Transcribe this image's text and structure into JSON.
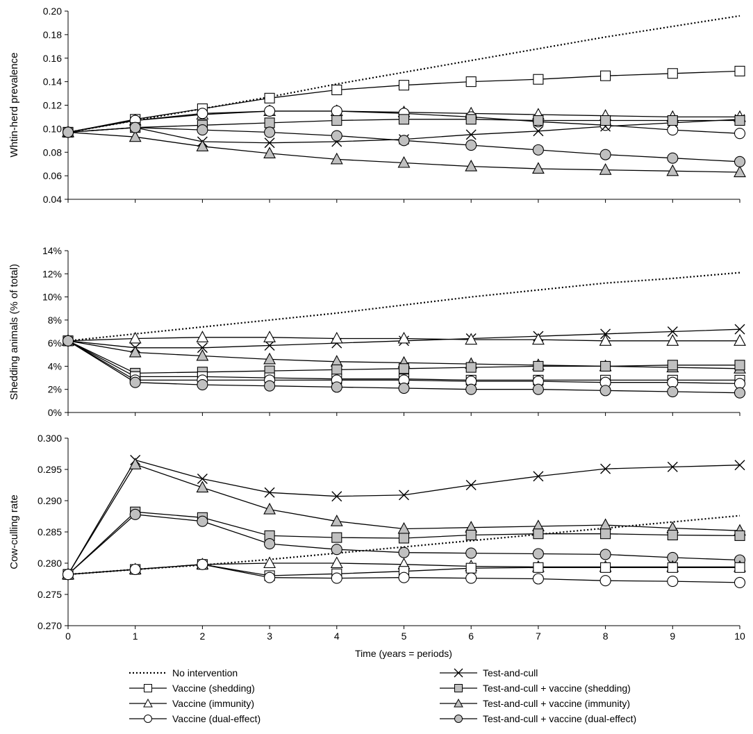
{
  "x_axis": {
    "label": "Time (years = periods)",
    "ticks": [
      "0",
      "1",
      "2",
      "3",
      "4",
      "5",
      "6",
      "7",
      "8",
      "9",
      "10"
    ]
  },
  "legend": [
    {
      "label": "No intervention",
      "style": "dotted",
      "marker": "none",
      "fill": "none"
    },
    {
      "label": "Test-and-cull",
      "style": "solid",
      "marker": "x",
      "fill": "none"
    },
    {
      "label": "Vaccine (shedding)",
      "style": "solid",
      "marker": "square",
      "fill": "#ffffff"
    },
    {
      "label": "Test-and-cull + vaccine (shedding)",
      "style": "solid",
      "marker": "square",
      "fill": "#c0c0c0"
    },
    {
      "label": "Vaccine (immunity)",
      "style": "solid",
      "marker": "triangle",
      "fill": "#ffffff"
    },
    {
      "label": "Test-and-cull + vaccine (immunity)",
      "style": "solid",
      "marker": "triangle",
      "fill": "#c0c0c0"
    },
    {
      "label": "Vaccine (dual-effect)",
      "style": "solid",
      "marker": "circle",
      "fill": "#ffffff"
    },
    {
      "label": "Test-and-cull + vaccine (dual-effect)",
      "style": "solid",
      "marker": "circle",
      "fill": "#c0c0c0"
    }
  ],
  "chart_data": [
    {
      "type": "line",
      "ylabel": "Whtin-herd prevalence",
      "ylim": [
        0.04,
        0.2
      ],
      "yticks": [
        "0.04",
        "0.06",
        "0.08",
        "0.10",
        "0.12",
        "0.14",
        "0.16",
        "0.18",
        "0.20"
      ],
      "x": [
        0,
        1,
        2,
        3,
        4,
        5,
        6,
        7,
        8,
        9,
        10
      ],
      "series": [
        {
          "name": "No intervention",
          "values": [
            0.097,
            0.107,
            0.117,
            0.127,
            0.138,
            0.148,
            0.158,
            0.168,
            0.178,
            0.187,
            0.196
          ]
        },
        {
          "name": "Vaccine (shedding)",
          "values": [
            0.097,
            0.108,
            0.117,
            0.126,
            0.133,
            0.137,
            0.14,
            0.142,
            0.145,
            0.147,
            0.149
          ]
        },
        {
          "name": "Vaccine (immunity)",
          "values": [
            0.097,
            0.107,
            0.112,
            0.115,
            0.115,
            0.114,
            0.113,
            0.112,
            0.111,
            0.11,
            0.11
          ]
        },
        {
          "name": "Vaccine (dual-effect)",
          "values": [
            0.097,
            0.107,
            0.113,
            0.115,
            0.115,
            0.113,
            0.11,
            0.106,
            0.103,
            0.099,
            0.096
          ]
        },
        {
          "name": "Test-and-cull",
          "values": [
            0.097,
            0.101,
            0.089,
            0.088,
            0.089,
            0.091,
            0.095,
            0.098,
            0.102,
            0.105,
            0.108
          ]
        },
        {
          "name": "Test-and-cull + vaccine (shedding)",
          "values": [
            0.097,
            0.101,
            0.103,
            0.105,
            0.107,
            0.108,
            0.108,
            0.107,
            0.107,
            0.107,
            0.107
          ]
        },
        {
          "name": "Test-and-cull + vaccine (immunity)",
          "values": [
            0.097,
            0.093,
            0.085,
            0.079,
            0.074,
            0.071,
            0.068,
            0.066,
            0.065,
            0.064,
            0.063
          ]
        },
        {
          "name": "Test-and-cull + vaccine (dual-effect)",
          "values": [
            0.097,
            0.101,
            0.099,
            0.097,
            0.094,
            0.09,
            0.086,
            0.082,
            0.078,
            0.075,
            0.072
          ]
        }
      ]
    },
    {
      "type": "line",
      "ylabel": "Shedding animals (% of total)",
      "ylim": [
        0,
        14
      ],
      "yticks": [
        "0%",
        "2%",
        "4%",
        "6%",
        "8%",
        "10%",
        "12%",
        "14%"
      ],
      "x": [
        0,
        1,
        2,
        3,
        4,
        5,
        6,
        7,
        8,
        9,
        10
      ],
      "series": [
        {
          "name": "No intervention",
          "values": [
            6.2,
            6.8,
            7.4,
            8.0,
            8.6,
            9.3,
            10.0,
            10.6,
            11.2,
            11.6,
            12.1
          ]
        },
        {
          "name": "Test-and-cull",
          "values": [
            6.2,
            5.6,
            5.6,
            5.8,
            6.0,
            6.2,
            6.4,
            6.6,
            6.8,
            7.0,
            7.2
          ]
        },
        {
          "name": "Vaccine (immunity)",
          "values": [
            6.2,
            6.4,
            6.5,
            6.5,
            6.4,
            6.4,
            6.3,
            6.3,
            6.2,
            6.2,
            6.2
          ]
        },
        {
          "name": "Test-and-cull + vaccine (immunity)",
          "values": [
            6.2,
            5.2,
            4.9,
            4.6,
            4.4,
            4.3,
            4.2,
            4.1,
            4.0,
            3.9,
            3.8
          ]
        },
        {
          "name": "Test-and-cull + vaccine (shedding)",
          "values": [
            6.2,
            3.4,
            3.5,
            3.6,
            3.7,
            3.8,
            3.9,
            4.0,
            4.0,
            4.1,
            4.1
          ]
        },
        {
          "name": "Vaccine (shedding)",
          "values": [
            6.2,
            3.1,
            3.1,
            3.0,
            2.9,
            2.9,
            2.8,
            2.8,
            2.8,
            2.8,
            2.8
          ]
        },
        {
          "name": "Vaccine (dual-effect)",
          "values": [
            6.2,
            2.8,
            2.8,
            2.8,
            2.8,
            2.8,
            2.7,
            2.7,
            2.6,
            2.6,
            2.5
          ]
        },
        {
          "name": "Test-and-cull + vaccine (dual-effect)",
          "values": [
            6.2,
            2.6,
            2.4,
            2.3,
            2.2,
            2.1,
            2.0,
            2.0,
            1.9,
            1.8,
            1.7
          ]
        }
      ]
    },
    {
      "type": "line",
      "ylabel": "Cow-culling rate",
      "ylim": [
        0.27,
        0.3
      ],
      "yticks": [
        "0.270",
        "0.275",
        "0.280",
        "0.285",
        "0.290",
        "0.295",
        "0.300"
      ],
      "x": [
        0,
        1,
        2,
        3,
        4,
        5,
        6,
        7,
        8,
        9,
        10
      ],
      "series": [
        {
          "name": "No intervention",
          "values": [
            0.2782,
            0.279,
            0.2797,
            0.2806,
            0.2816,
            0.2826,
            0.2836,
            0.2846,
            0.2856,
            0.2866,
            0.2876
          ]
        },
        {
          "name": "Test-and-cull",
          "values": [
            0.2782,
            0.2965,
            0.2935,
            0.2913,
            0.2907,
            0.2909,
            0.2925,
            0.2939,
            0.2951,
            0.2954,
            0.2957
          ]
        },
        {
          "name": "Test-and-cull + vaccine (immunity)",
          "values": [
            0.2782,
            0.2958,
            0.2921,
            0.2886,
            0.2867,
            0.2855,
            0.2857,
            0.2859,
            0.2861,
            0.2856,
            0.2852
          ]
        },
        {
          "name": "Test-and-cull + vaccine (shedding)",
          "values": [
            0.2782,
            0.2882,
            0.2873,
            0.2844,
            0.2841,
            0.284,
            0.2845,
            0.2847,
            0.2847,
            0.2845,
            0.2844
          ]
        },
        {
          "name": "Test-and-cull + vaccine (dual-effect)",
          "values": [
            0.2782,
            0.2878,
            0.2867,
            0.2831,
            0.2822,
            0.2817,
            0.2816,
            0.2815,
            0.2814,
            0.2809,
            0.2805
          ]
        },
        {
          "name": "Vaccine (immunity)",
          "values": [
            0.2782,
            0.279,
            0.2798,
            0.28,
            0.28,
            0.2798,
            0.2795,
            0.2794,
            0.2794,
            0.2794,
            0.2794
          ]
        },
        {
          "name": "Vaccine (shedding)",
          "values": [
            0.2782,
            0.279,
            0.2798,
            0.278,
            0.2783,
            0.2787,
            0.2792,
            0.2793,
            0.2793,
            0.2793,
            0.2793
          ]
        },
        {
          "name": "Vaccine (dual-effect)",
          "values": [
            0.2782,
            0.279,
            0.2798,
            0.2777,
            0.2776,
            0.2777,
            0.2776,
            0.2775,
            0.2772,
            0.2771,
            0.2769
          ]
        }
      ]
    }
  ]
}
